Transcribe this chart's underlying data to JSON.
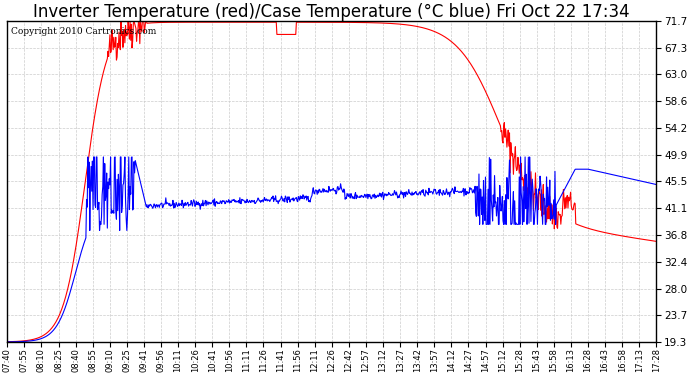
{
  "title": "Inverter Temperature (red)/Case Temperature (°C blue) Fri Oct 22 17:34",
  "copyright": "Copyright 2010 Cartronics.com",
  "yticks": [
    19.3,
    23.7,
    28.0,
    32.4,
    36.8,
    41.1,
    45.5,
    49.9,
    54.2,
    58.6,
    63.0,
    67.3,
    71.7
  ],
  "ymin": 19.3,
  "ymax": 71.7,
  "red_color": "#FF0000",
  "blue_color": "#0000FF",
  "bg_color": "#FFFFFF",
  "grid_color": "#CCCCCC",
  "title_fontsize": 12,
  "xlabel_rotation": 90,
  "xtick_labels": [
    "07:40",
    "07:55",
    "08:10",
    "08:25",
    "08:40",
    "08:55",
    "09:10",
    "09:25",
    "09:41",
    "09:56",
    "10:11",
    "10:26",
    "10:41",
    "10:56",
    "11:11",
    "11:26",
    "11:41",
    "11:56",
    "12:11",
    "12:26",
    "12:42",
    "12:57",
    "13:12",
    "13:27",
    "13:42",
    "13:57",
    "14:12",
    "14:27",
    "14:57",
    "15:12",
    "15:28",
    "15:43",
    "15:58",
    "16:13",
    "16:28",
    "16:43",
    "16:58",
    "17:13",
    "17:28"
  ]
}
